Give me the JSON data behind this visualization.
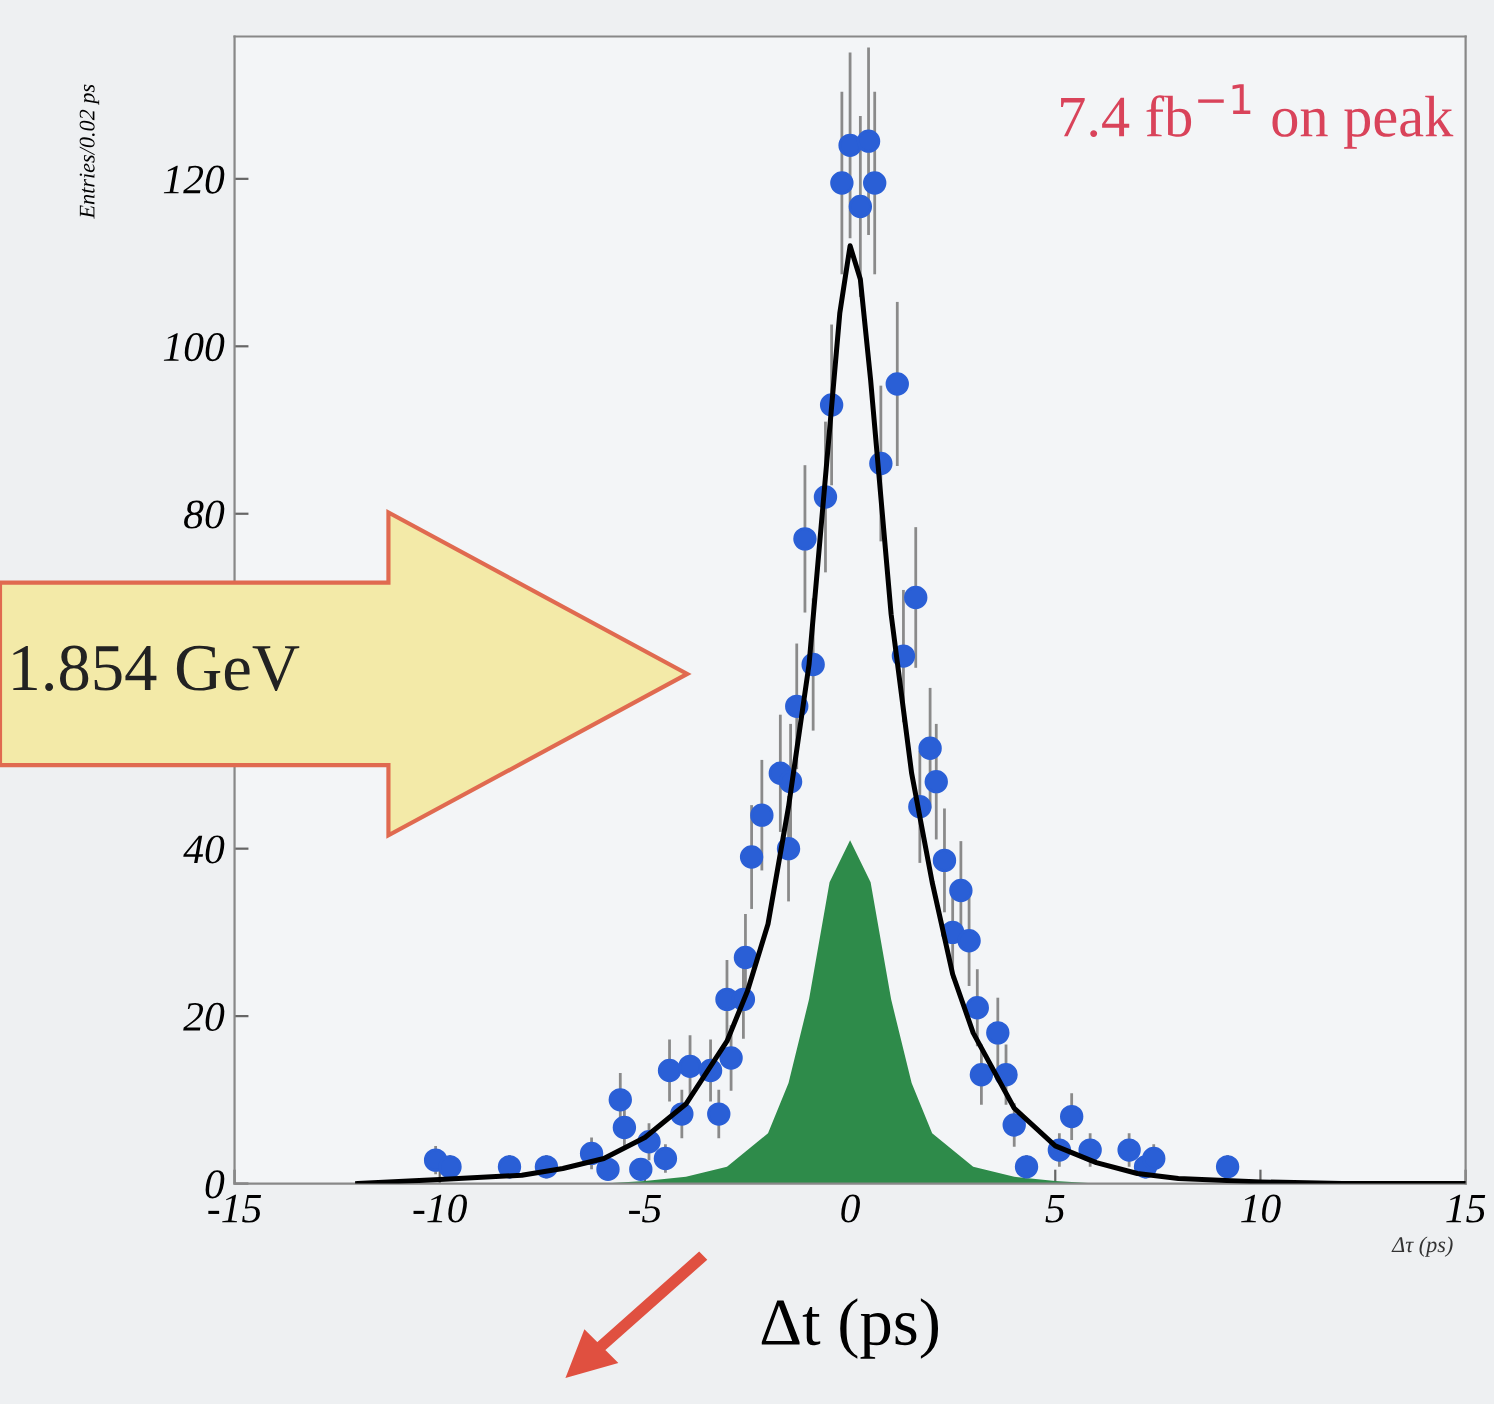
{
  "chart_data": {
    "type": "scatter",
    "xlabel": "Δt (ps)",
    "ylabel": "Entries/0.02 ps",
    "xlim": [
      -15,
      15
    ],
    "xticks": [
      -15,
      -10,
      -5,
      0,
      5,
      10,
      15
    ],
    "ylim": [
      0,
      137
    ],
    "yticks": [
      0,
      20,
      40,
      {
        "value": 60,
        "label": null
      },
      80,
      100,
      120
    ],
    "grid": false,
    "annotations": [
      "7.4 fb$^{−1}$ on peak",
      "1.854 GeV",
      "Δτ (ps)"
    ],
    "series": [
      {
        "type": "area",
        "color": "#2e8b4a",
        "x": [
          -6,
          -5,
          -4,
          -3,
          -2,
          -1.5,
          -1,
          -0.5,
          0,
          0.5,
          1,
          1.5,
          2,
          3,
          4,
          5,
          6
        ],
        "values": [
          0,
          0.3,
          0.8,
          2,
          6,
          12,
          22,
          36,
          41,
          36,
          22,
          12,
          6,
          2,
          0.8,
          0.3,
          0
        ]
      },
      {
        "type": "line",
        "color": "#000000",
        "line_style": "solid",
        "marker": "none",
        "x": [
          -12,
          -10,
          -8,
          -7,
          -6,
          -5,
          -4,
          -3,
          -2.5,
          -2,
          -1.5,
          -1,
          -0.5,
          -0.25,
          0,
          0.25,
          0.5,
          1,
          1.5,
          2,
          2.5,
          3,
          4,
          5,
          6,
          7,
          8,
          10,
          12,
          15
        ],
        "values": [
          0,
          0.5,
          1,
          1.8,
          3,
          5.5,
          9.5,
          17,
          23,
          31,
          45,
          62,
          90,
          104,
          112,
          108,
          96,
          68,
          49,
          36,
          25,
          18,
          9,
          4.5,
          2.5,
          1.2,
          0.6,
          0.2,
          0,
          0
        ]
      },
      {
        "marker": "circle",
        "color": "#2a5fd6",
        "x": [
          -10.1,
          -9.75,
          -8.3,
          -7.4,
          -6.3,
          -5.9,
          -5.6,
          -5.5,
          -5.1,
          -4.9,
          -4.5,
          -4.4,
          -4.1,
          -3.9,
          -3.4,
          -3.2,
          -3.0,
          -2.9,
          -2.6,
          -2.55,
          -2.4,
          -2.15,
          -1.7,
          -1.5,
          -1.45,
          -1.3,
          -1.1,
          -0.9,
          -0.6,
          -0.45,
          -0.2,
          0,
          0.25,
          0.45,
          0.6,
          0.75,
          1.15,
          1.3,
          1.6,
          1.7,
          1.95,
          2.1,
          2.3,
          2.5,
          2.7,
          2.9,
          3.1,
          3.2,
          3.6,
          3.8,
          4.0,
          4.3,
          5.1,
          5.4,
          5.85,
          6.8,
          7.2,
          7.4,
          9.2
        ],
        "values": [
          2.8,
          2,
          2,
          2,
          3.6,
          1.7,
          10,
          6.7,
          1.7,
          5,
          3,
          13.5,
          8.3,
          14,
          13.5,
          8.3,
          22,
          15,
          22,
          27,
          39,
          44,
          49,
          40,
          48,
          57,
          77,
          62,
          82,
          93,
          119.5,
          124,
          116.7,
          124.5,
          119.5,
          86,
          95.5,
          63,
          70,
          45,
          52,
          48,
          38.6,
          30,
          35,
          29,
          21,
          13,
          18,
          13,
          7,
          2,
          4,
          8,
          4,
          4,
          2,
          3,
          2
        ],
        "errors": [
          1.7,
          1.4,
          1.4,
          1.4,
          1.9,
          1.3,
          3.2,
          2.6,
          1.3,
          2.2,
          1.7,
          3.7,
          2.9,
          3.7,
          3.7,
          2.9,
          4.7,
          3.9,
          4.7,
          5.2,
          6.2,
          6.6,
          7,
          6.3,
          6.9,
          7.5,
          8.8,
          7.9,
          9,
          9.6,
          10.9,
          11.1,
          10.8,
          11.2,
          10.9,
          9.3,
          9.8,
          7.9,
          8.4,
          6.7,
          7.2,
          6.9,
          6.2,
          5.5,
          5.9,
          5.4,
          4.6,
          3.6,
          4.2,
          3.6,
          2.6,
          1.4,
          2,
          2.8,
          2,
          2,
          1.4,
          1.7,
          1.4
        ]
      }
    ]
  }
}
